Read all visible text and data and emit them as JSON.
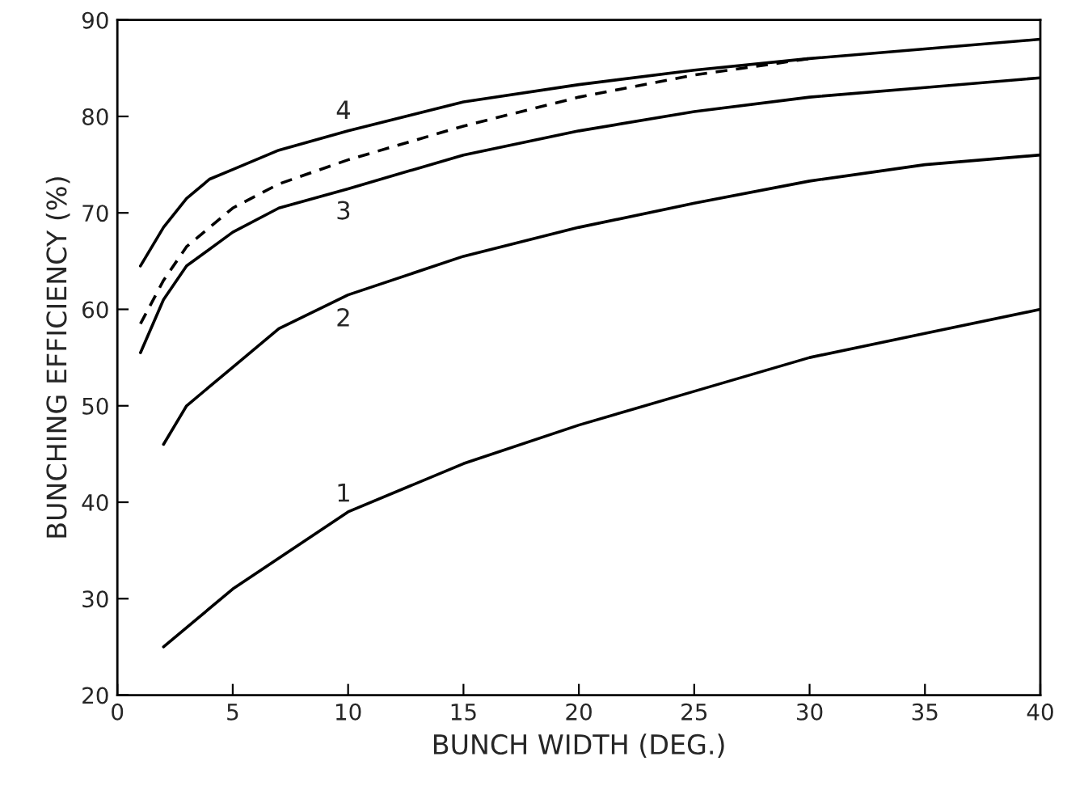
{
  "chart_data": {
    "type": "line",
    "xlabel": "BUNCH WIDTH (DEG.)",
    "ylabel": "BUNCHING EFFICIENCY (%)",
    "xlim": [
      0,
      40
    ],
    "xticks": [
      0,
      5,
      10,
      15,
      20,
      25,
      30,
      35,
      40
    ],
    "ylim": [
      20,
      90
    ],
    "yticks": [
      20,
      30,
      40,
      50,
      60,
      70,
      80,
      90
    ],
    "grid": false,
    "legend": false,
    "marker": "none",
    "series": [
      {
        "name": "1",
        "color": "#000000",
        "line_style": "solid",
        "x": [
          2,
          5,
          10,
          15,
          20,
          25,
          30,
          35,
          40
        ],
        "values": [
          25,
          31,
          39,
          44,
          48,
          51.5,
          55,
          57.5,
          60
        ]
      },
      {
        "name": "2",
        "color": "#000000",
        "line_style": "solid",
        "x": [
          2,
          3,
          5,
          7,
          10,
          15,
          20,
          25,
          30,
          35,
          40
        ],
        "values": [
          46,
          50,
          54,
          58,
          61.5,
          65.5,
          68.5,
          71,
          73.3,
          75,
          76
        ]
      },
      {
        "name": "3",
        "color": "#000000",
        "line_style": "solid",
        "x": [
          1,
          2,
          3,
          5,
          7,
          10,
          15,
          20,
          25,
          30,
          35,
          40
        ],
        "values": [
          55.5,
          61,
          64.5,
          68,
          70.5,
          72.5,
          76,
          78.5,
          80.5,
          82,
          83,
          84
        ]
      },
      {
        "color": "#000000",
        "line_style": "dashed",
        "x": [
          1,
          2,
          3,
          5,
          7,
          10,
          15,
          20,
          25,
          28,
          30
        ],
        "values": [
          58.5,
          63,
          66.5,
          70.5,
          73,
          75.5,
          79,
          82,
          84.3,
          85.3,
          86
        ]
      },
      {
        "name": "4",
        "color": "#000000",
        "line_style": "solid",
        "x": [
          1,
          2,
          3,
          4,
          5,
          7,
          10,
          15,
          20,
          25,
          30,
          35,
          40
        ],
        "values": [
          64.5,
          68.5,
          71.5,
          73.5,
          74.5,
          76.5,
          78.5,
          81.5,
          83.3,
          84.8,
          86,
          87,
          88
        ]
      }
    ]
  }
}
